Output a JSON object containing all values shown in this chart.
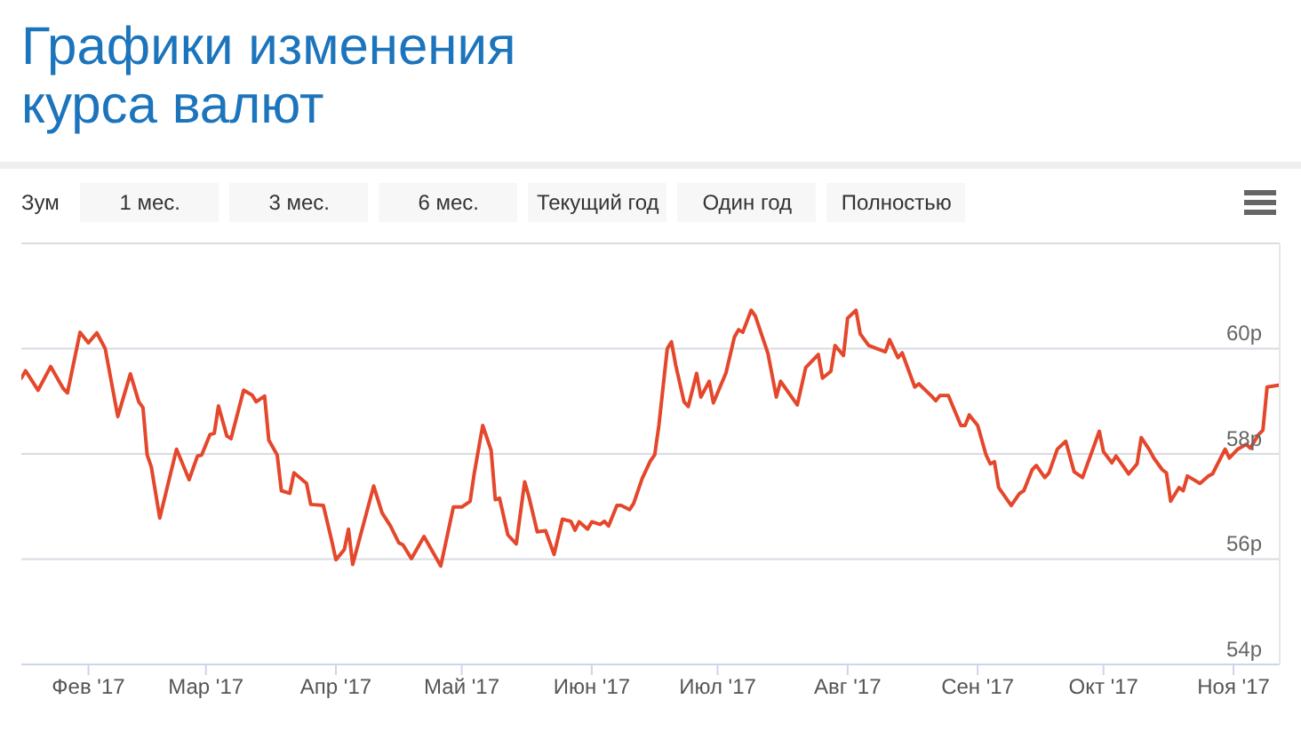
{
  "chart_data": {
    "type": "line",
    "title": "Графики изменения курса валют",
    "annotations": [
      "Зум",
      "1 мес.",
      "3 мес.",
      "6 мес.",
      "Текущий год",
      "Один год",
      "Полностью"
    ],
    "x": [
      "2017-01-16",
      "2017-01-17",
      "2017-01-20",
      "2017-01-23",
      "2017-01-26",
      "2017-01-27",
      "2017-01-30",
      "2017-02-01",
      "2017-02-03",
      "2017-02-05",
      "2017-02-08",
      "2017-02-11",
      "2017-02-13",
      "2017-02-14",
      "2017-02-15",
      "2017-02-16",
      "2017-02-18",
      "2017-02-22",
      "2017-02-25",
      "2017-02-27",
      "2017-02-28",
      "2017-03-02",
      "2017-03-03",
      "2017-03-04",
      "2017-03-06",
      "2017-03-07",
      "2017-03-10",
      "2017-03-12",
      "2017-03-13",
      "2017-03-15",
      "2017-03-16",
      "2017-03-18",
      "2017-03-19",
      "2017-03-21",
      "2017-03-22",
      "2017-03-25",
      "2017-03-26",
      "2017-03-29",
      "2017-03-31",
      "2017-04-01",
      "2017-04-03",
      "2017-04-04",
      "2017-04-05",
      "2017-04-10",
      "2017-04-12",
      "2017-04-14",
      "2017-04-16",
      "2017-04-17",
      "2017-04-19",
      "2017-04-22",
      "2017-04-26",
      "2017-04-29",
      "2017-05-01",
      "2017-05-03",
      "2017-05-04",
      "2017-05-06",
      "2017-05-08",
      "2017-05-09",
      "2017-05-10",
      "2017-05-12",
      "2017-05-14",
      "2017-05-16",
      "2017-05-17",
      "2017-05-19",
      "2017-05-21",
      "2017-05-23",
      "2017-05-25",
      "2017-05-27",
      "2017-05-28",
      "2017-05-29",
      "2017-05-31",
      "2017-06-01",
      "2017-06-03",
      "2017-06-04",
      "2017-06-05",
      "2017-06-07",
      "2017-06-08",
      "2017-06-10",
      "2017-06-11",
      "2017-06-13",
      "2017-06-15",
      "2017-06-16",
      "2017-06-17",
      "2017-06-19",
      "2017-06-20",
      "2017-06-21",
      "2017-06-23",
      "2017-06-24",
      "2017-06-26",
      "2017-06-27",
      "2017-06-29",
      "2017-06-30",
      "2017-07-03",
      "2017-07-05",
      "2017-07-06",
      "2017-07-07",
      "2017-07-09",
      "2017-07-10",
      "2017-07-13",
      "2017-07-15",
      "2017-07-16",
      "2017-07-20",
      "2017-07-22",
      "2017-07-25",
      "2017-07-26",
      "2017-07-28",
      "2017-07-29",
      "2017-07-31",
      "2017-08-01",
      "2017-08-03",
      "2017-08-04",
      "2017-08-06",
      "2017-08-10",
      "2017-08-11",
      "2017-08-13",
      "2017-08-14",
      "2017-08-17",
      "2017-08-18",
      "2017-08-21",
      "2017-08-22",
      "2017-08-23",
      "2017-08-25",
      "2017-08-28",
      "2017-08-29",
      "2017-08-30",
      "2017-09-01",
      "2017-09-03",
      "2017-09-04",
      "2017-09-05",
      "2017-09-06",
      "2017-09-09",
      "2017-09-11",
      "2017-09-12",
      "2017-09-14",
      "2017-09-15",
      "2017-09-17",
      "2017-09-18",
      "2017-09-20",
      "2017-09-22",
      "2017-09-24",
      "2017-09-26",
      "2017-09-30",
      "2017-10-01",
      "2017-10-03",
      "2017-10-04",
      "2017-10-07",
      "2017-10-09",
      "2017-10-10",
      "2017-10-12",
      "2017-10-13",
      "2017-10-15",
      "2017-10-16",
      "2017-10-17",
      "2017-10-19",
      "2017-10-20",
      "2017-10-21",
      "2017-10-24",
      "2017-10-26",
      "2017-10-27",
      "2017-10-28",
      "2017-10-30",
      "2017-10-31",
      "2017-11-02",
      "2017-11-04",
      "2017-11-05",
      "2017-11-07",
      "2017-11-08",
      "2017-11-09",
      "2017-11-12"
    ],
    "series": [
      {
        "color": "#e4472b",
        "values": [
          59.44,
          59.58,
          59.21,
          59.66,
          59.24,
          59.16,
          60.31,
          60.11,
          60.3,
          60.0,
          58.71,
          59.52,
          58.99,
          58.88,
          57.98,
          57.75,
          56.78,
          58.09,
          57.51,
          57.96,
          57.98,
          58.37,
          58.39,
          58.91,
          58.34,
          58.29,
          59.21,
          59.12,
          58.99,
          59.1,
          58.26,
          57.98,
          57.3,
          57.25,
          57.64,
          57.44,
          57.04,
          57.02,
          56.35,
          55.99,
          56.18,
          56.57,
          55.9,
          57.39,
          56.88,
          56.63,
          56.31,
          56.27,
          56.01,
          56.43,
          55.87,
          56.99,
          56.99,
          57.1,
          57.64,
          58.54,
          58.07,
          57.13,
          57.16,
          56.46,
          56.29,
          57.47,
          57.19,
          56.52,
          56.54,
          56.09,
          56.76,
          56.72,
          56.55,
          56.71,
          56.57,
          56.71,
          56.66,
          56.72,
          56.63,
          57.02,
          57.02,
          56.94,
          57.06,
          57.53,
          57.87,
          57.98,
          58.54,
          60.0,
          60.13,
          59.69,
          58.99,
          58.9,
          59.53,
          59.08,
          59.38,
          58.97,
          59.54,
          60.22,
          60.36,
          60.31,
          60.73,
          60.62,
          59.91,
          59.08,
          59.38,
          58.93,
          59.64,
          59.89,
          59.44,
          59.57,
          60.06,
          59.87,
          60.58,
          60.73,
          60.28,
          60.06,
          59.94,
          60.17,
          59.83,
          59.92,
          59.27,
          59.33,
          59.1,
          59.01,
          59.11,
          59.11,
          58.54,
          58.54,
          58.74,
          58.54,
          57.98,
          57.81,
          57.85,
          57.36,
          57.02,
          57.25,
          57.3,
          57.7,
          57.78,
          57.55,
          57.64,
          58.09,
          58.24,
          57.66,
          57.55,
          58.43,
          58.04,
          57.83,
          57.96,
          57.62,
          57.81,
          58.31,
          58.07,
          57.92,
          57.7,
          57.64,
          57.1,
          57.36,
          57.3,
          57.58,
          57.44,
          57.58,
          57.62,
          57.78,
          58.09,
          57.92,
          58.09,
          58.18,
          58.11,
          58.37,
          58.45,
          59.27,
          59.31
        ]
      }
    ],
    "xlim": [
      "2017-01-16",
      "2017-11-12"
    ],
    "xticks": [
      {
        "value": "2017-02-01",
        "label": "Фев '17"
      },
      {
        "value": "2017-03-01",
        "label": "Мар '17"
      },
      {
        "value": "2017-04-01",
        "label": "Апр '17"
      },
      {
        "value": "2017-05-01",
        "label": "Май '17"
      },
      {
        "value": "2017-06-01",
        "label": "Июн '17"
      },
      {
        "value": "2017-07-01",
        "label": "Июл '17"
      },
      {
        "value": "2017-08-01",
        "label": "Авг '17"
      },
      {
        "value": "2017-09-01",
        "label": "Сен '17"
      },
      {
        "value": "2017-10-01",
        "label": "Окт '17"
      },
      {
        "value": "2017-11-01",
        "label": "Ноя '17"
      }
    ],
    "ylim": [
      54,
      62
    ],
    "yticks": [
      {
        "value": 54,
        "label": "54р"
      },
      {
        "value": 56,
        "label": "56р"
      },
      {
        "value": 58,
        "label": "58р"
      },
      {
        "value": 60,
        "label": "60р"
      },
      {
        "value": 62,
        "label": null
      }
    ],
    "grid": "y",
    "legend": false,
    "marker": "none",
    "line_style": "solid"
  }
}
